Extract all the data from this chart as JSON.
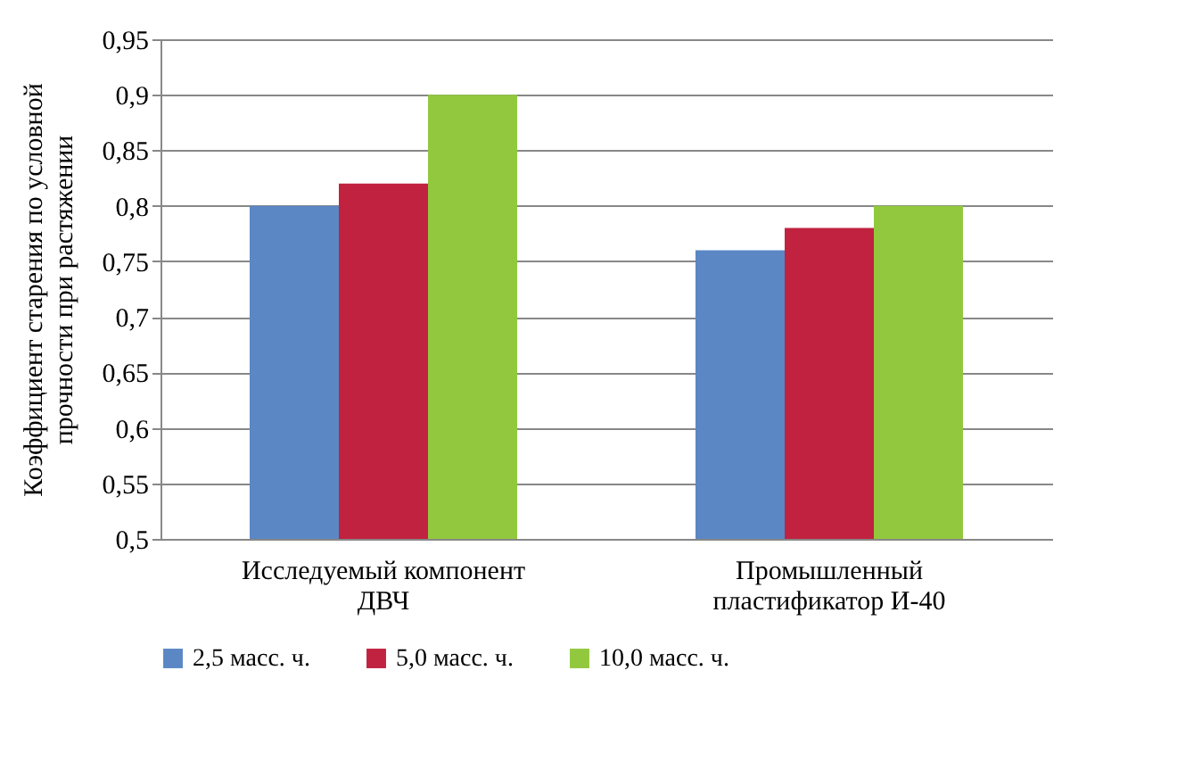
{
  "chart_data": {
    "type": "bar",
    "categories": [
      "Исследуемый компонент\nДВЧ",
      "Промышленный\nпластификатор  И-40"
    ],
    "ylabel": "Коэффициент  старения по условной\nпрочности при растяжении",
    "series": [
      {
        "name": "2,5 масс. ч.",
        "color": "#5b87c5",
        "values": [
          0.8,
          0.76
        ]
      },
      {
        "name": "5,0 масс. ч.",
        "color": "#c0223f",
        "values": [
          0.82,
          0.78
        ]
      },
      {
        "name": "10,0 масс. ч.",
        "color": "#92c83e",
        "values": [
          0.9,
          0.8
        ]
      }
    ],
    "ylim": [
      0.5,
      0.95
    ],
    "yticks": [
      {
        "value": 0.5,
        "label": "0,5"
      },
      {
        "value": 0.55,
        "label": "0,55"
      },
      {
        "value": 0.6,
        "label": "0,6"
      },
      {
        "value": 0.65,
        "label": "0,65"
      },
      {
        "value": 0.7,
        "label": "0,7"
      },
      {
        "value": 0.75,
        "label": "0,75"
      },
      {
        "value": 0.8,
        "label": "0,8"
      },
      {
        "value": 0.85,
        "label": "0,85"
      },
      {
        "value": 0.9,
        "label": "0,9"
      },
      {
        "value": 0.95,
        "label": "0,95"
      }
    ],
    "grid": "y",
    "legend": "bottom"
  }
}
